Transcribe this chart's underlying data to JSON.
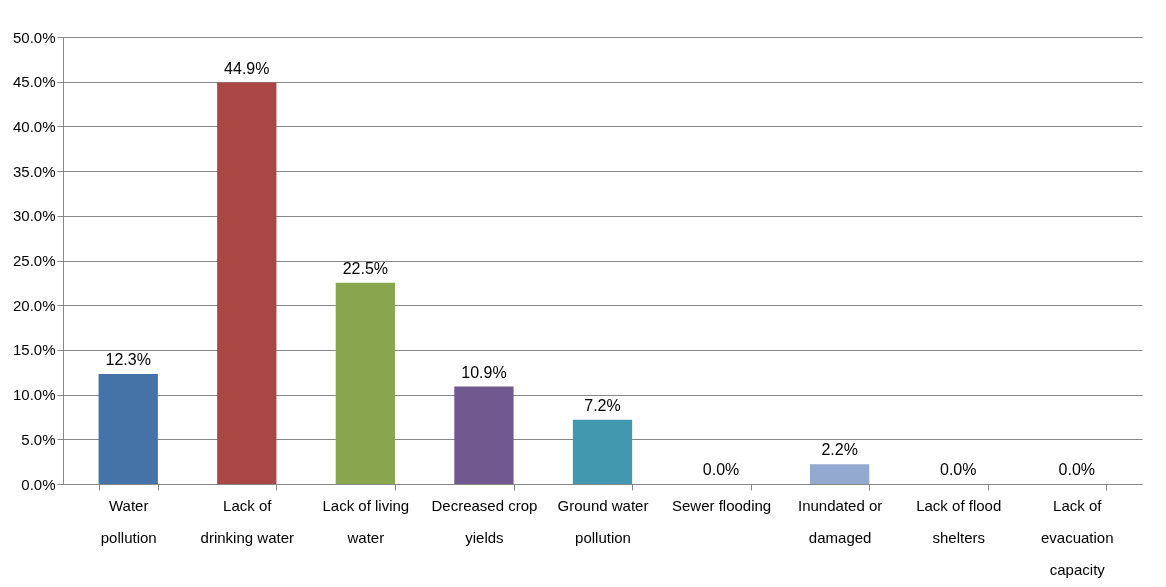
{
  "chart_data": {
    "type": "bar",
    "categories": [
      "Water pollution",
      "Lack of drinking water",
      "Lack of living water",
      "Decreased crop yields",
      "Ground water pollution",
      "Sewer flooding",
      "Inundated or damaged",
      "Lack of flood shelters",
      "Lack of evacuation capacity"
    ],
    "values": [
      12.3,
      44.9,
      22.5,
      10.9,
      7.2,
      0.0,
      2.2,
      0.0,
      0.0
    ],
    "colors": [
      "#4572a7",
      "#aa4643",
      "#89a54e",
      "#71588f",
      "#4198af",
      "#db843d",
      "#93a9cf",
      "#d19392",
      "#b9cd96"
    ],
    "value_labels": [
      "12.3%",
      "44.9%",
      "22.5%",
      "10.9%",
      "7.2%",
      "0.0%",
      "2.2%",
      "0.0%",
      "0.0%"
    ],
    "ylim": [
      0,
      50
    ],
    "yticks": [
      {
        "value": 0,
        "label": "0.0%"
      },
      {
        "value": 5,
        "label": "5.0%"
      },
      {
        "value": 10,
        "label": "10.0%"
      },
      {
        "value": 15,
        "label": "15.0%"
      },
      {
        "value": 20,
        "label": "20.0%"
      },
      {
        "value": 25,
        "label": "25.0%"
      },
      {
        "value": 30,
        "label": "30.0%"
      },
      {
        "value": 35,
        "label": "35.0%"
      },
      {
        "value": 40,
        "label": "40.0%"
      },
      {
        "value": 45,
        "label": "45.0%"
      },
      {
        "value": 50,
        "label": "50.0%"
      }
    ],
    "grid": "y"
  }
}
